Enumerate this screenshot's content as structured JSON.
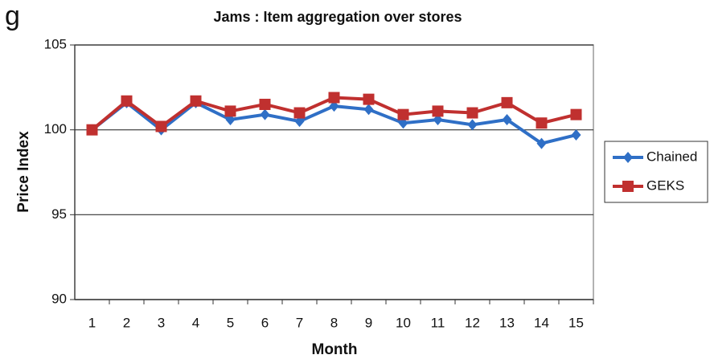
{
  "panel_label": "g",
  "chart_data": {
    "type": "line",
    "title": "Jams : Item aggregation over stores",
    "x_label": "Month",
    "y_label": "Price Index",
    "categories": [
      "1",
      "2",
      "3",
      "4",
      "5",
      "6",
      "7",
      "8",
      "9",
      "10",
      "11",
      "12",
      "13",
      "14",
      "15"
    ],
    "series": [
      {
        "name": "Chained",
        "color": "#2f6fc6",
        "marker": "diamond",
        "values": [
          100,
          101.6,
          100.0,
          101.6,
          100.6,
          100.9,
          100.5,
          101.4,
          101.2,
          100.4,
          100.6,
          100.3,
          100.6,
          99.2,
          99.7
        ]
      },
      {
        "name": "GEKS",
        "color": "#c0302f",
        "marker": "square",
        "values": [
          100,
          101.7,
          100.2,
          101.7,
          101.1,
          101.5,
          101.0,
          101.9,
          101.8,
          100.9,
          101.1,
          101.0,
          101.6,
          100.4,
          100.9
        ]
      }
    ],
    "ylim": [
      90,
      105
    ],
    "yticks": [
      90,
      95,
      100,
      105
    ],
    "grid": true,
    "legend": "right"
  }
}
